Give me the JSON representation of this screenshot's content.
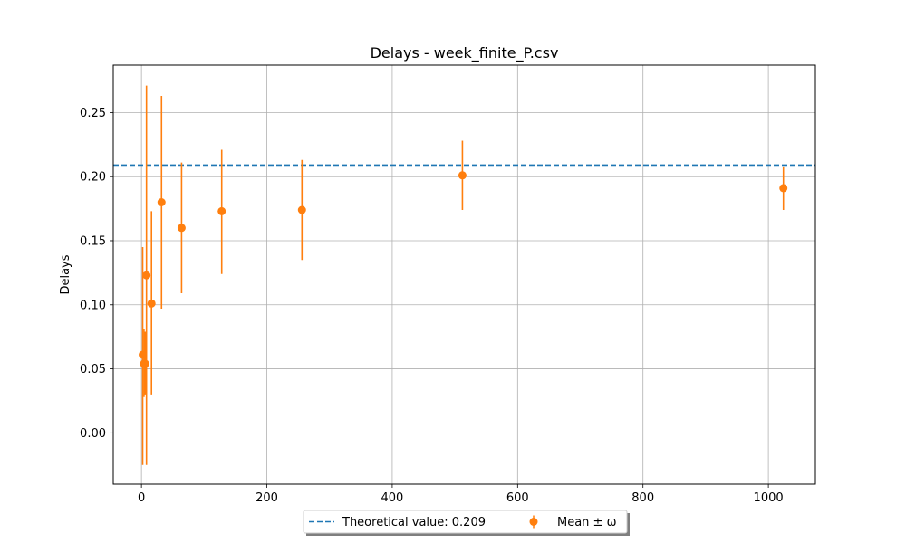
{
  "chart_data": {
    "type": "scatter",
    "title": "Delays - week_finite_P.csv",
    "xlabel": "",
    "ylabel": "Delays",
    "xlim": [
      -45,
      1075
    ],
    "ylim": [
      -0.04,
      0.287
    ],
    "x_ticks": [
      0,
      200,
      400,
      600,
      800,
      1000
    ],
    "x_tick_labels": [
      "0",
      "200",
      "400",
      "600",
      "800",
      "1000"
    ],
    "y_ticks": [
      0.0,
      0.05,
      0.1,
      0.15,
      0.2,
      0.25
    ],
    "y_tick_labels": [
      "0.00",
      "0.05",
      "0.10",
      "0.15",
      "0.20",
      "0.25"
    ],
    "grid": true,
    "legend_position": "bottom-center, below axes",
    "reference_line": {
      "label": "Theoretical value: 0.209",
      "value": 0.209,
      "style": "dashed",
      "color": "#1f77b4"
    },
    "series": [
      {
        "name": "Mean ± ω",
        "color": "#ff7f0e",
        "x": [
          2,
          4,
          6,
          8,
          16,
          32,
          64,
          128,
          256,
          512,
          1024
        ],
        "y": [
          0.061,
          0.054,
          0.054,
          0.123,
          0.101,
          0.18,
          0.16,
          0.173,
          0.174,
          0.201,
          0.191
        ],
        "err_low": [
          -0.025,
          0.028,
          0.03,
          -0.025,
          0.03,
          0.097,
          0.109,
          0.124,
          0.135,
          0.174,
          0.174
        ],
        "err_high": [
          0.145,
          0.081,
          0.079,
          0.271,
          0.173,
          0.263,
          0.211,
          0.221,
          0.213,
          0.228,
          0.208
        ]
      }
    ]
  }
}
